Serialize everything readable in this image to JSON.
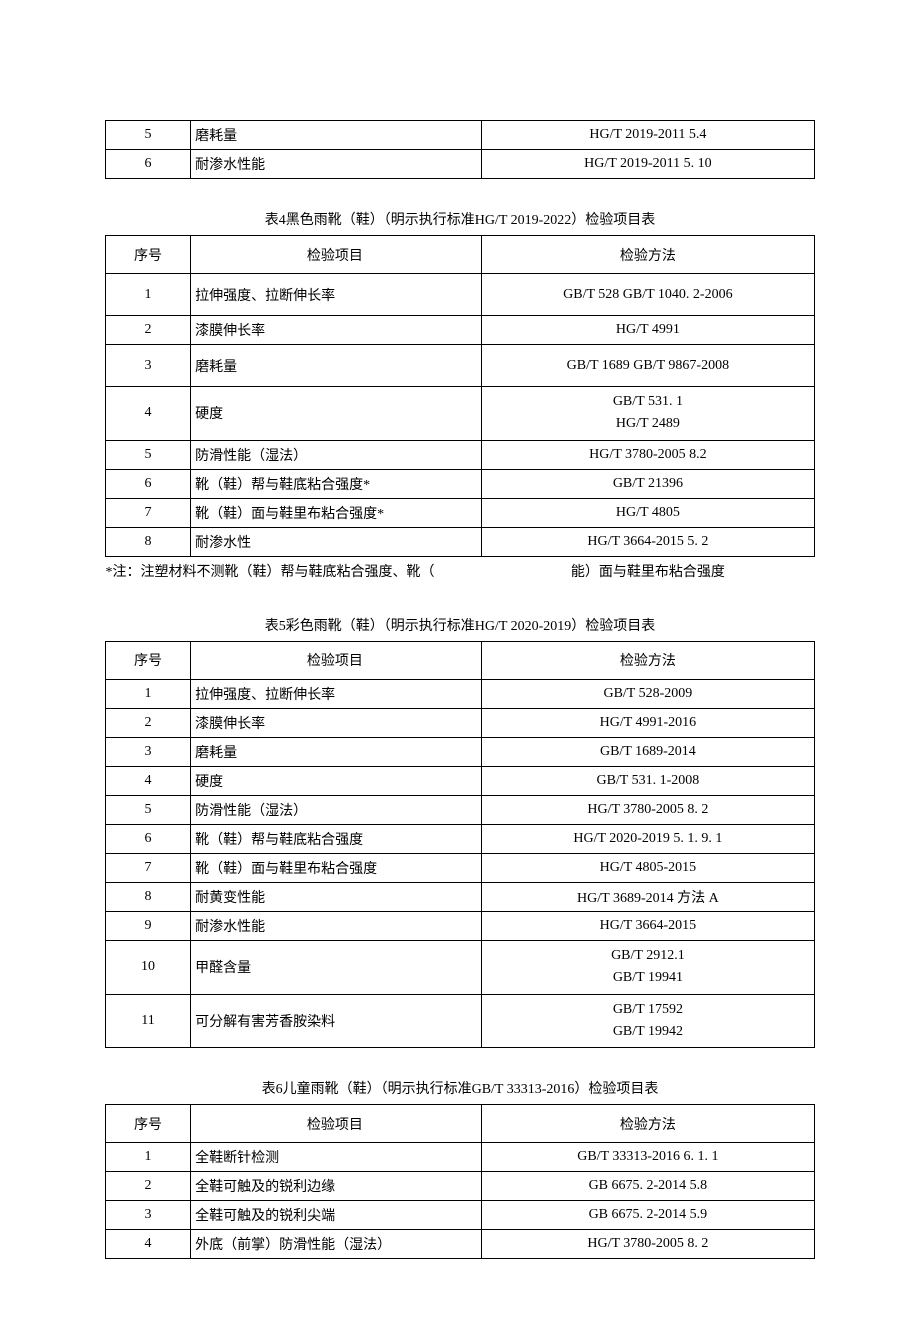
{
  "topFragment": {
    "rows": [
      {
        "seq": "5",
        "item": "磨耗量",
        "method": "HG/T 2019-2011 5.4"
      },
      {
        "seq": "6",
        "item": "耐渗水性能",
        "method": "HG/T 2019-2011 5. 10"
      }
    ]
  },
  "table4": {
    "caption": "表4黑色雨靴（鞋）（明示执行标准HG/T 2019-2022）检验项目表",
    "headers": {
      "seq": "序号",
      "item": "检验项目",
      "method": "检验方法"
    },
    "rows": [
      {
        "seq": "1",
        "item": "拉伸强度、拉断伸长率",
        "method": "GB/T 528 GB/T 1040. 2-2006",
        "height": "tall"
      },
      {
        "seq": "2",
        "item": "漆膜伸长率",
        "method": "HG/T 4991",
        "height": "med"
      },
      {
        "seq": "3",
        "item": "磨耗量",
        "method": "GB/T 1689 GB/T 9867-2008",
        "height": "tall"
      },
      {
        "seq": "4",
        "item": "硬度",
        "method": "GB/T 531. 1\nHG/T 2489",
        "height": "tall",
        "multi": true
      },
      {
        "seq": "5",
        "item": "防滑性能（湿法）",
        "method": "HG/T 3780-2005 8.2",
        "height": "short"
      },
      {
        "seq": "6",
        "item": "靴（鞋）帮与鞋底粘合强度*",
        "method": "GB/T 21396",
        "height": "short"
      },
      {
        "seq": "7",
        "item": "靴（鞋）面与鞋里布粘合强度*",
        "method": "HG/T 4805",
        "height": "med"
      },
      {
        "seq": "8",
        "item": "耐渗水性",
        "method": "HG/T 3664-2015 5. 2",
        "height": "short"
      }
    ],
    "note": {
      "left": "*注：注塑材料不测靴（鞋）帮与鞋底粘合强度、靴（",
      "right": "能）面与鞋里布粘合强度"
    }
  },
  "table5": {
    "caption": "表5彩色雨靴（鞋）（明示执行标准HG/T 2020-2019）检验项目表",
    "headers": {
      "seq": "序号",
      "item": "检验项目",
      "method": "检验方法"
    },
    "rows": [
      {
        "seq": "1",
        "item": "拉伸强度、拉断伸长率",
        "method": "GB/T 528-2009",
        "height": "short"
      },
      {
        "seq": "2",
        "item": "漆膜伸长率",
        "method": "HG/T 4991-2016",
        "height": "med"
      },
      {
        "seq": "3",
        "item": "磨耗量",
        "method": "GB/T 1689-2014",
        "height": "med"
      },
      {
        "seq": "4",
        "item": "硬度",
        "method": "GB/T 531. 1-2008",
        "height": "short"
      },
      {
        "seq": "5",
        "item": "防滑性能（湿法）",
        "method": "HG/T 3780-2005 8. 2",
        "height": "med"
      },
      {
        "seq": "6",
        "item": "靴（鞋）帮与鞋底粘合强度",
        "method": "HG/T 2020-2019 5. 1. 9. 1",
        "height": "short"
      },
      {
        "seq": "7",
        "item": "靴（鞋）面与鞋里布粘合强度",
        "method": "HG/T 4805-2015",
        "height": "med"
      },
      {
        "seq": "8",
        "item": "耐黄变性能",
        "method": "HG/T 3689-2014 方法 A",
        "height": "med"
      },
      {
        "seq": "9",
        "item": "耐渗水性能",
        "method": "HG/T 3664-2015",
        "height": "short"
      },
      {
        "seq": "10",
        "item": "甲醛含量",
        "method": "GB/T 2912.1\nGB/T 19941",
        "height": "tall",
        "multi": true
      },
      {
        "seq": "11",
        "item": "可分解有害芳香胺染料",
        "method": "GB/T 17592\nGB/T 19942",
        "height": "tall",
        "multi": true
      }
    ]
  },
  "table6": {
    "caption": "表6儿童雨靴（鞋）（明示执行标准GB/T 33313-2016）检验项目表",
    "headers": {
      "seq": "序号",
      "item": "检验项目",
      "method": "检验方法"
    },
    "rows": [
      {
        "seq": "1",
        "item": "全鞋断针检测",
        "method": "GB/T 33313-2016 6. 1. 1",
        "height": "short"
      },
      {
        "seq": "2",
        "item": "全鞋可触及的锐利边缘",
        "method": "GB 6675. 2-2014 5.8",
        "height": "short"
      },
      {
        "seq": "3",
        "item": "全鞋可触及的锐利尖端",
        "method": "GB 6675. 2-2014 5.9",
        "height": "short"
      },
      {
        "seq": "4",
        "item": "外底（前掌）防滑性能（湿法）",
        "method": "HG/T 3780-2005 8. 2",
        "height": "short"
      }
    ]
  }
}
